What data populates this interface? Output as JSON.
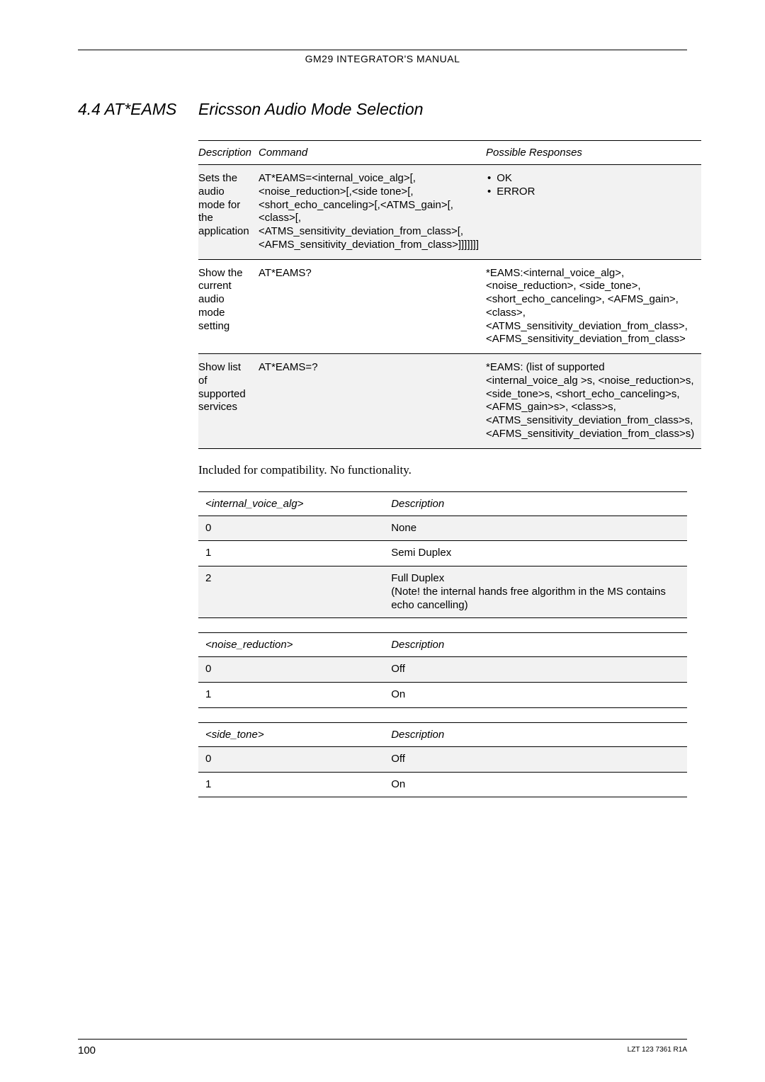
{
  "header": {
    "text": "GM29 INTEGRATOR'S MANUAL"
  },
  "section": {
    "number": "4.4 AT*EAMS",
    "title": "Ericsson Audio Mode Selection"
  },
  "main_table": {
    "headers": [
      "Description",
      "Command",
      "Possible Responses"
    ],
    "rows": [
      {
        "desc": "Sets the audio mode for the application",
        "cmd": "AT*EAMS=<internal_voice_alg>[,<noise_reduction>[,<side tone>[,<short_echo_canceling>[,<ATMS_gain>[,<class>[,<ATMS_sensitivity_deviation_from_class>[,<AFMS_sensitivity_deviation_from_class>]]]]]]]",
        "resp_bullets": [
          "OK",
          "ERROR"
        ]
      },
      {
        "desc": "Show the current audio mode setting",
        "cmd": "AT*EAMS?",
        "resp": "*EAMS:<internal_voice_alg>, <noise_reduction>, <side_tone>, <short_echo_canceling>, <AFMS_gain>,<class>,<ATMS_sensitivity_deviation_from_class>,<AFMS_sensitivity_deviation_from_class>"
      },
      {
        "desc": "Show list of supported services",
        "cmd": "AT*EAMS=?",
        "resp": "*EAMS: (list of supported <internal_voice_alg >s, <noise_reduction>s, <side_tone>s, <short_echo_canceling>s, <AFMS_gain>s>, <class>s, <ATMS_sensitivity_deviation_from_class>s, <AFMS_sensitivity_deviation_from_class>s)"
      }
    ]
  },
  "note": "Included for compatibility. No functionality.",
  "param_tables": [
    {
      "header_left": "<internal_voice_alg>",
      "header_right": "Description",
      "rows": [
        {
          "k": "0",
          "v": "None"
        },
        {
          "k": "1",
          "v": "Semi Duplex"
        },
        {
          "k": "2",
          "v": "Full Duplex\n(Note! the internal hands free algorithm in the MS contains echo cancelling)"
        }
      ]
    },
    {
      "header_left": "<noise_reduction>",
      "header_right": "Description",
      "rows": [
        {
          "k": "0",
          "v": "Off"
        },
        {
          "k": "1",
          "v": "On"
        }
      ]
    },
    {
      "header_left": "<side_tone>",
      "header_right": "Description",
      "rows": [
        {
          "k": "0",
          "v": "Off"
        },
        {
          "k": "1",
          "v": "On"
        }
      ]
    }
  ],
  "footer": {
    "page": "100",
    "ref": "LZT 123 7361 R1A"
  }
}
